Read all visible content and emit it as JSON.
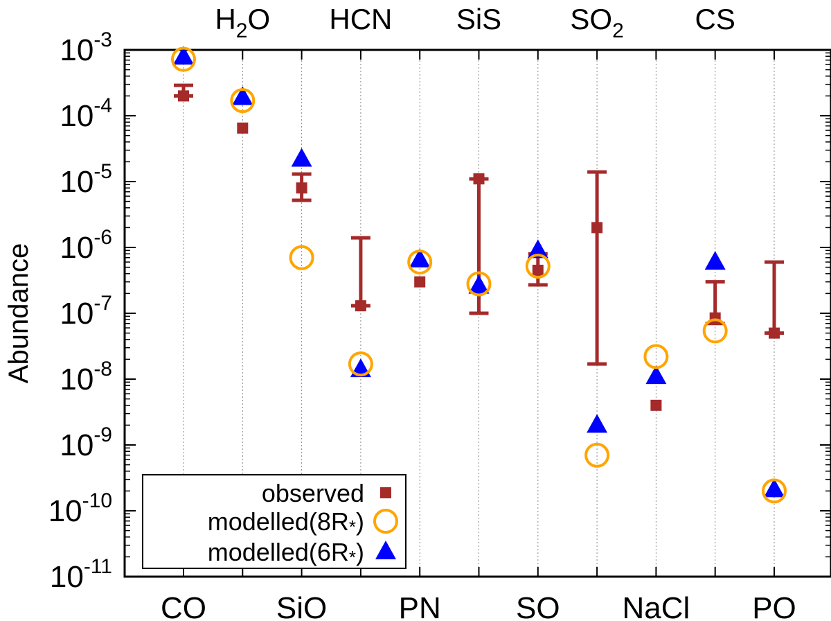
{
  "chart_data": {
    "type": "scatter",
    "ylabel": "Abundance",
    "yscale": "log",
    "ylim": [
      1e-11,
      0.001
    ],
    "grid": "vertical dotted lines at each molecule",
    "legend_position": "bottom-left",
    "categories": [
      "CO",
      "H2O",
      "SiO",
      "HCN",
      "PN",
      "SiS",
      "SO",
      "SO2",
      "NaCl",
      "CS",
      "PO"
    ],
    "bottom_tick_labels": [
      "CO",
      "SiO",
      "PN",
      "SO",
      "NaCl",
      "PO"
    ],
    "top_tick_labels": [
      {
        "base": "H",
        "sub": "2",
        "rest": "O"
      },
      {
        "base": "HCN",
        "sub": "",
        "rest": ""
      },
      {
        "base": "SiS",
        "sub": "",
        "rest": ""
      },
      {
        "base": "SO",
        "sub": "2",
        "rest": ""
      },
      {
        "base": "CS",
        "sub": "",
        "rest": ""
      }
    ],
    "y_tick_labels": [
      {
        "base": "10",
        "exp": "-3"
      },
      {
        "base": "10",
        "exp": "-4"
      },
      {
        "base": "10",
        "exp": "-5"
      },
      {
        "base": "10",
        "exp": "-6"
      },
      {
        "base": "10",
        "exp": "-7"
      },
      {
        "base": "10",
        "exp": "-8"
      },
      {
        "base": "10",
        "exp": "-9"
      },
      {
        "base": "10",
        "exp": "-10"
      },
      {
        "base": "10",
        "exp": "-11"
      }
    ],
    "series": [
      {
        "name": "observed",
        "marker": "filled-square",
        "color": "#a52a2a",
        "values": [
          0.0002,
          6.5e-05,
          8e-06,
          1.3e-07,
          3e-07,
          1.1e-05,
          4.5e-07,
          2e-06,
          4e-09,
          8.5e-08,
          5e-08
        ],
        "error_low": [
          0.0002,
          null,
          5.2e-06,
          1.3e-07,
          null,
          1e-07,
          2.7e-07,
          1.7e-08,
          null,
          7e-08,
          5e-08
        ],
        "error_high": [
          0.00029,
          null,
          1.3e-05,
          1.4e-06,
          null,
          1.1e-05,
          8e-07,
          1.4e-05,
          null,
          3e-07,
          6e-07
        ]
      },
      {
        "name": "modelled(8R*)",
        "marker": "open-circle",
        "color": "#ffa500",
        "values": [
          0.00072,
          0.00017,
          7e-07,
          1.7e-08,
          6e-07,
          2.8e-07,
          5.2e-07,
          7e-10,
          2.2e-08,
          5.4e-08,
          2e-10
        ]
      },
      {
        "name": "modelled(6R*)",
        "marker": "filled-triangle",
        "color": "#0000ff",
        "values": [
          0.00078,
          0.00019,
          2.2e-05,
          1.4e-08,
          6.5e-07,
          2.6e-07,
          9e-07,
          2e-09,
          1.1e-08,
          6e-07,
          2.1e-10
        ]
      }
    ],
    "legend": [
      {
        "label_main": "observed",
        "label_sub": ""
      },
      {
        "label_main": "modelled(8R",
        "label_sub": "*",
        "label_end": ")"
      },
      {
        "label_main": "modelled(6R",
        "label_sub": "*",
        "label_end": ")"
      }
    ]
  }
}
